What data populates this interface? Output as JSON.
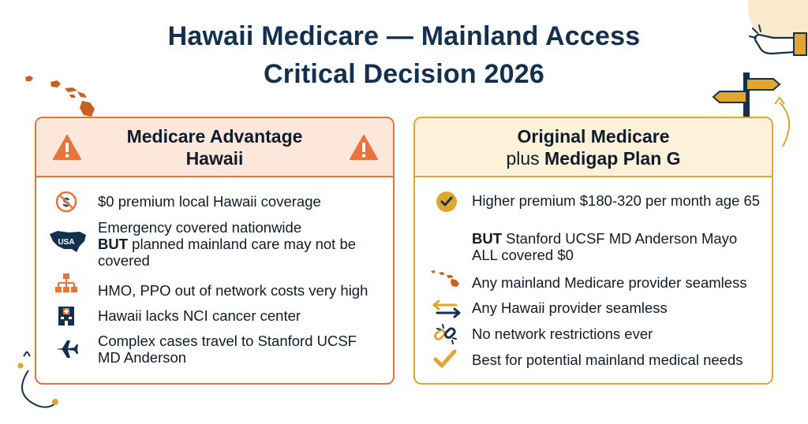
{
  "title": {
    "line1": "Hawaii Medicare — Mainland Access",
    "line2": "Critical Decision 2026"
  },
  "left_panel": {
    "heading_line1": "Medicare Advantage",
    "heading_line2": "Hawaii",
    "items": [
      {
        "text": "$0 premium local Hawaii coverage",
        "icon": "no-dollar-icon"
      },
      {
        "text": "Emergency covered nationwide",
        "bold": "BUT",
        "rest": " planned mainland care may not be covered",
        "icon": "usa-map-icon",
        "icon_label": "USA"
      },
      {
        "text": "HMO, PPO out of network costs very high",
        "icon": "network-hierarchy-icon"
      },
      {
        "text": "Hawaii lacks NCI cancer center",
        "icon": "hospital-icon"
      },
      {
        "text": "Complex cases travel to Stanford UCSF MD Anderson",
        "icon": "airplane-icon"
      }
    ]
  },
  "right_panel": {
    "heading_line1": "Original Medicare",
    "heading_line2_normal": "plus ",
    "heading_line2_bold": "Medigap Plan G",
    "items": [
      {
        "text": "Higher premium $180-320 per month age 65",
        "icon": "check-circle-icon"
      },
      {
        "bold": "BUT",
        "rest": " Stanford UCSF MD Anderson Mayo ALL covered $0"
      },
      {
        "text": "Any mainland Medicare provider seamless",
        "icon": "hawaii-islands-icon"
      },
      {
        "text": "Any Hawaii provider seamless",
        "icon": "swap-arrows-icon"
      },
      {
        "text": "No network restrictions ever",
        "icon": "broken-chain-icon"
      },
      {
        "text": "Best for potential mainland medical needs",
        "icon": "checkmark-icon"
      }
    ]
  },
  "colors": {
    "orange": "#e8743b",
    "gold": "#e0a72e",
    "navy": "#14304f",
    "left_header_bg": "#fde6da",
    "right_header_bg": "#fdf1d9"
  }
}
